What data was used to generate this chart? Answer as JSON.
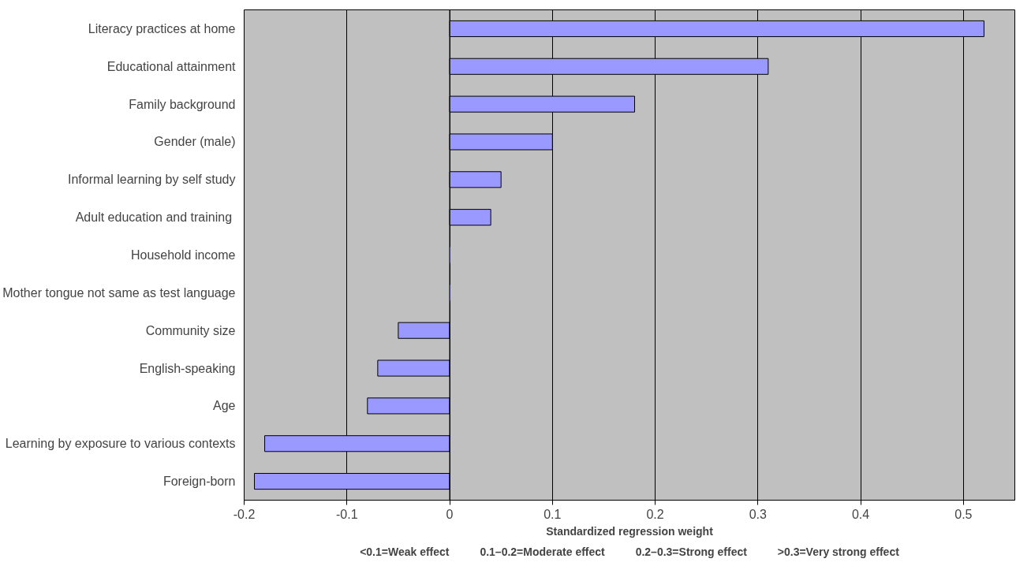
{
  "chart_data": {
    "type": "bar",
    "orientation": "horizontal",
    "xlabel": "Standardized regression weight",
    "categories": [
      "Literacy practices at home",
      "Educational attainment",
      "Family background",
      "Gender (male)",
      "Informal learning by self study",
      "Adult education and training ",
      "Household income",
      "Mother tongue not same as test language",
      "Community size",
      "English-speaking",
      "Age",
      "Learning by exposure to various contexts",
      "Foreign-born"
    ],
    "values": [
      0.52,
      0.31,
      0.18,
      0.1,
      0.05,
      0.04,
      0,
      0,
      -0.05,
      -0.07,
      -0.08,
      -0.18,
      -0.19
    ],
    "color": "#9999ff",
    "xlim": [
      -0.2,
      0.55
    ],
    "xticks": [
      -0.2,
      -0.1,
      0,
      0.1,
      0.2,
      0.3,
      0.4,
      0.5
    ],
    "grid": "x",
    "annotations": [
      "<0.1=Weak effect",
      "0.1–0.2=Moderate effect",
      "0.2–0.3=Strong effect",
      ">0.3=Very strong effect"
    ]
  }
}
